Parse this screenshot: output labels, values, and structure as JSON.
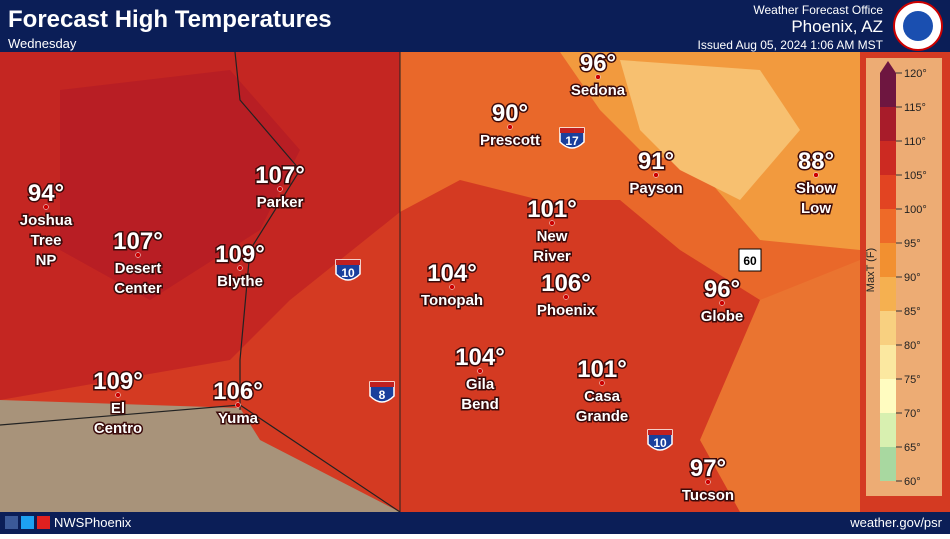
{
  "header": {
    "title": "Forecast High Temperatures",
    "day": "Wednesday",
    "office": "Weather Forecast Office",
    "location": "Phoenix, AZ",
    "issued": "Issued Aug 05, 2024 1:06 AM MST"
  },
  "cities": [
    {
      "temp": "94°",
      "name": [
        "Joshua",
        "Tree",
        "NP"
      ]
    },
    {
      "temp": "107°",
      "name": [
        "Desert",
        "Center"
      ]
    },
    {
      "temp": "107°",
      "name": [
        "Parker"
      ]
    },
    {
      "temp": "109°",
      "name": [
        "Blythe"
      ]
    },
    {
      "temp": "109°",
      "name": [
        "El",
        "Centro"
      ]
    },
    {
      "temp": "106°",
      "name": [
        "Yuma"
      ]
    },
    {
      "temp": "90°",
      "name": [
        "Prescott"
      ]
    },
    {
      "temp": "96°",
      "name": [
        "Sedona"
      ]
    },
    {
      "temp": "91°",
      "name": [
        "Payson"
      ]
    },
    {
      "temp": "88°",
      "name": [
        "Show",
        "Low"
      ]
    },
    {
      "temp": "101°",
      "name": [
        "New",
        "River"
      ]
    },
    {
      "temp": "104°",
      "name": [
        "Tonopah"
      ]
    },
    {
      "temp": "106°",
      "name": [
        "Phoenix"
      ]
    },
    {
      "temp": "104°",
      "name": [
        "Gila",
        "Bend"
      ]
    },
    {
      "temp": "101°",
      "name": [
        "Casa",
        "Grande"
      ]
    },
    {
      "temp": "96°",
      "name": [
        "Globe"
      ]
    },
    {
      "temp": "97°",
      "name": [
        "Tucson"
      ]
    }
  ],
  "highways": [
    {
      "label": "10",
      "kind": "interstate"
    },
    {
      "label": "17",
      "kind": "interstate"
    },
    {
      "label": "8",
      "kind": "interstate"
    },
    {
      "label": "10",
      "kind": "interstate"
    },
    {
      "label": "60",
      "kind": "us"
    }
  ],
  "legend": {
    "title": "MaxT (F)",
    "ticks": [
      {
        "value": 60,
        "label": "60°"
      },
      {
        "value": 65,
        "label": "65°"
      },
      {
        "value": 70,
        "label": "70°"
      },
      {
        "value": 75,
        "label": "75°"
      },
      {
        "value": 80,
        "label": "80°"
      },
      {
        "value": 85,
        "label": "85°"
      },
      {
        "value": 90,
        "label": "90°"
      },
      {
        "value": 95,
        "label": "95°"
      },
      {
        "value": 100,
        "label": "100°"
      },
      {
        "value": 105,
        "label": "105°"
      },
      {
        "value": 110,
        "label": "110°"
      },
      {
        "value": 115,
        "label": "115°"
      },
      {
        "value": 120,
        "label": "120°"
      }
    ],
    "colors": [
      "#a8d8a0",
      "#d8f0b0",
      "#fffcc0",
      "#fbe8a0",
      "#f8d080",
      "#f5b050",
      "#f29030",
      "#ee6a28",
      "#e24422",
      "#cc2a22",
      "#a81c2a",
      "#6e1640"
    ]
  },
  "footer": {
    "handle": "NWSPhoenix",
    "url": "weather.gov/psr"
  }
}
